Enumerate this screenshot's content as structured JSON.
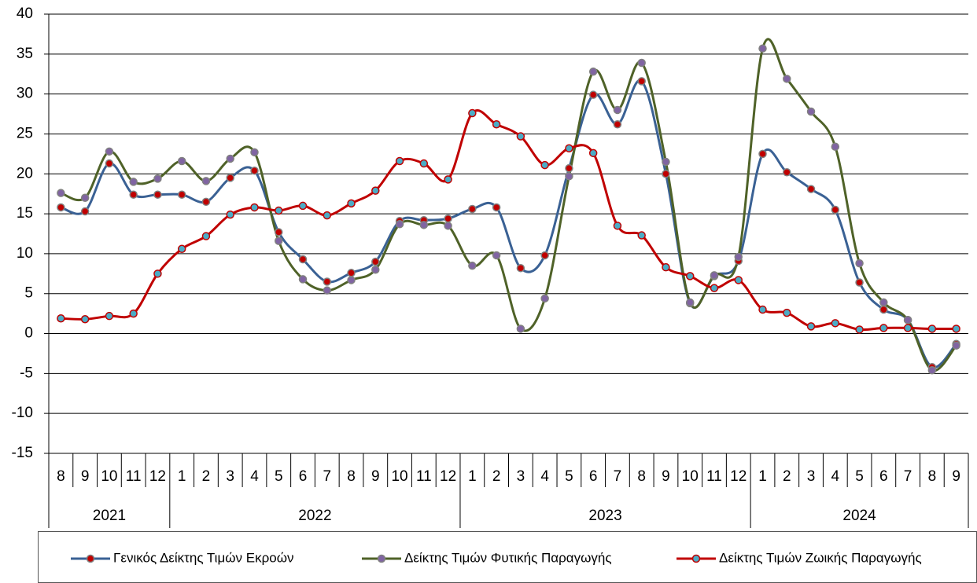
{
  "chart_data": {
    "type": "line",
    "categories": [
      "8",
      "9",
      "10",
      "11",
      "12",
      "1",
      "2",
      "3",
      "4",
      "5",
      "6",
      "7",
      "8",
      "9",
      "10",
      "11",
      "12",
      "1",
      "2",
      "3",
      "4",
      "5",
      "6",
      "7",
      "8",
      "9",
      "10",
      "11",
      "12",
      "1",
      "2",
      "3",
      "4",
      "5",
      "6",
      "7",
      "8",
      "9"
    ],
    "x_groups": [
      "2021",
      "2022",
      "2023",
      "2024"
    ],
    "ylim": [
      -15,
      40
    ],
    "yticks": [
      -15,
      -10,
      -5,
      0,
      5,
      10,
      15,
      20,
      25,
      30,
      35,
      40
    ],
    "grid": true,
    "smooth": true,
    "series": [
      {
        "name": "Γενικός Δείκτης Τιμών Εκροών",
        "color": "#3a6194",
        "marker_color": "#c00000",
        "values": [
          15.8,
          15.3,
          21.3,
          17.4,
          17.4,
          17.4,
          16.5,
          19.5,
          20.4,
          12.7,
          9.3,
          6.5,
          7.6,
          9.0,
          14.1,
          14.2,
          14.4,
          15.6,
          15.8,
          8.2,
          9.8,
          20.7,
          29.9,
          26.2,
          31.6,
          20.0,
          3.8,
          7.2,
          9.1,
          22.5,
          20.2,
          18.1,
          15.5,
          6.4,
          3.0,
          1.7,
          -4.2,
          -1.3
        ]
      },
      {
        "name": "Δείκτης Τιμών Φυτικής Παραγωγής",
        "color": "#4f6228",
        "marker_color": "#8064a2",
        "values": [
          17.6,
          17.0,
          22.8,
          19.0,
          19.4,
          21.6,
          19.1,
          21.9,
          22.7,
          11.6,
          6.8,
          5.4,
          6.7,
          8.0,
          13.7,
          13.6,
          13.5,
          8.5,
          9.8,
          0.6,
          4.4,
          19.7,
          32.8,
          28.0,
          33.9,
          21.5,
          3.9,
          7.3,
          9.6,
          35.7,
          31.9,
          27.8,
          23.4,
          8.8,
          3.9,
          1.7,
          -4.6,
          -1.5
        ]
      },
      {
        "name": "Δείκτης Τιμών Ζωικής Παραγωγής",
        "color": "#c00000",
        "marker_color": "#4bacc6",
        "values": [
          1.9,
          1.8,
          2.2,
          2.5,
          7.5,
          10.6,
          12.2,
          14.9,
          15.8,
          15.4,
          16.0,
          14.8,
          16.3,
          17.9,
          21.6,
          21.3,
          19.3,
          27.6,
          26.2,
          24.7,
          21.1,
          23.2,
          22.6,
          13.5,
          12.3,
          8.3,
          7.2,
          5.7,
          6.7,
          3.0,
          2.6,
          0.9,
          1.3,
          0.5,
          0.7,
          0.7,
          0.6,
          0.6
        ]
      }
    ]
  }
}
